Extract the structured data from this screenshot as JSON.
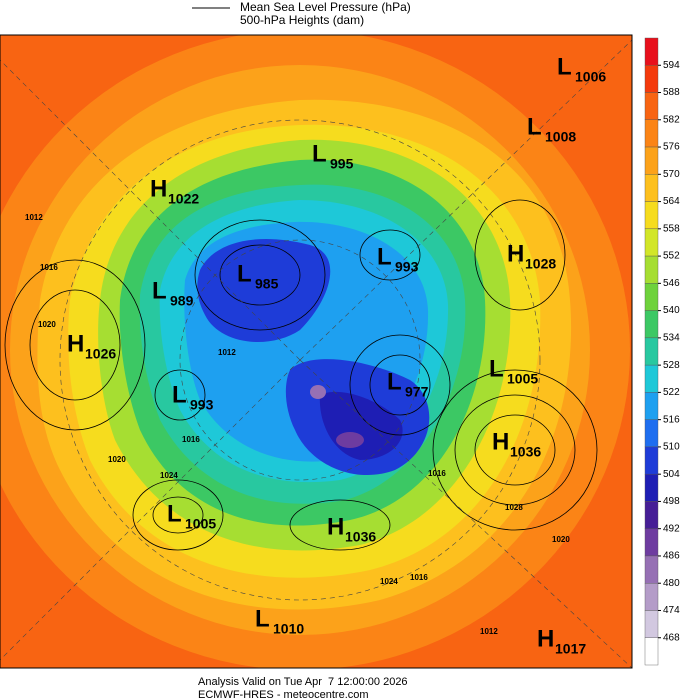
{
  "header": {
    "line1": "Mean Sea Level Pressure (hPa)",
    "line2": "500-hPa Heights (dam)"
  },
  "colorbar": {
    "ticks": [
      "594",
      "588",
      "582",
      "576",
      "570",
      "564",
      "558",
      "552",
      "546",
      "540",
      "534",
      "528",
      "522",
      "516",
      "510",
      "504",
      "498",
      "492",
      "486",
      "480",
      "474",
      "468"
    ],
    "colors": [
      "#e8101c",
      "#f43a0c",
      "#f86412",
      "#fb8416",
      "#fca21a",
      "#fdc01e",
      "#f6dc1e",
      "#d2e628",
      "#a6de32",
      "#6ed23c",
      "#3cc864",
      "#28c8a0",
      "#1ec8d8",
      "#1ea0f0",
      "#1e6ef0",
      "#1e3cd8",
      "#1e1eb4",
      "#461e96",
      "#6e3ca0",
      "#9670b4",
      "#b49cc8",
      "#d2c8e0",
      "#ffffff"
    ]
  },
  "centers": [
    {
      "kind": "L",
      "value": "1006"
    },
    {
      "kind": "L",
      "value": "1008"
    },
    {
      "kind": "L",
      "value": "995"
    },
    {
      "kind": "H",
      "value": "1022"
    },
    {
      "kind": "L",
      "value": "993"
    },
    {
      "kind": "H",
      "value": "1028"
    },
    {
      "kind": "L",
      "value": "985"
    },
    {
      "kind": "L",
      "value": "989"
    },
    {
      "kind": "H",
      "value": "1026"
    },
    {
      "kind": "L",
      "value": "1005"
    },
    {
      "kind": "L",
      "value": "977"
    },
    {
      "kind": "L",
      "value": "993"
    },
    {
      "kind": "H",
      "value": "1036"
    },
    {
      "kind": "L",
      "value": "1005"
    },
    {
      "kind": "H",
      "value": "1036"
    },
    {
      "kind": "L",
      "value": "1010"
    },
    {
      "kind": "H",
      "value": "1017"
    }
  ],
  "contour_labels": [
    "1012",
    "1016",
    "1020",
    "1024",
    "1016",
    "1020",
    "1016",
    "1024",
    "1028",
    "1020",
    "1012",
    "1016",
    "1012"
  ],
  "footer": {
    "line1": "Analysis Valid on Tue Apr  7 12:00:00 2026",
    "line2": "ECMWF-HRES - meteocentre.com"
  }
}
